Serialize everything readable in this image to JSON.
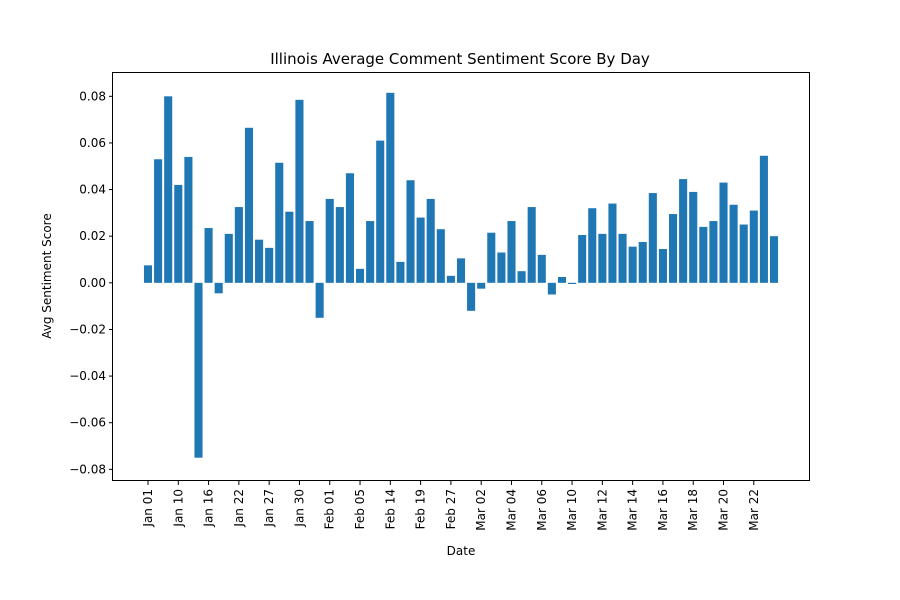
{
  "chart_data": {
    "type": "bar",
    "title": "Illinois Average Comment Sentiment Score By Day",
    "xlabel": "Date",
    "ylabel": "Avg Sentiment Score",
    "ylim": [
      -0.085,
      0.09
    ],
    "yticks": [
      -0.08,
      -0.06,
      -0.04,
      -0.02,
      0.0,
      0.02,
      0.04,
      0.06,
      0.08
    ],
    "ytick_labels": [
      "−0.08",
      "−0.06",
      "−0.04",
      "−0.02",
      "0.00",
      "0.02",
      "0.04",
      "0.06",
      "0.08"
    ],
    "xticks": [
      {
        "index": 0,
        "label": "Jan 01"
      },
      {
        "index": 3,
        "label": "Jan 10"
      },
      {
        "index": 6,
        "label": "Jan 16"
      },
      {
        "index": 9,
        "label": "Jan 22"
      },
      {
        "index": 12,
        "label": "Jan 27"
      },
      {
        "index": 15,
        "label": "Jan 30"
      },
      {
        "index": 18,
        "label": "Feb 01"
      },
      {
        "index": 21,
        "label": "Feb 05"
      },
      {
        "index": 24,
        "label": "Feb 14"
      },
      {
        "index": 27,
        "label": "Feb 19"
      },
      {
        "index": 30,
        "label": "Feb 27"
      },
      {
        "index": 33,
        "label": "Mar 02"
      },
      {
        "index": 36,
        "label": "Mar 04"
      },
      {
        "index": 39,
        "label": "Mar 06"
      },
      {
        "index": 42,
        "label": "Mar 10"
      },
      {
        "index": 45,
        "label": "Mar 12"
      },
      {
        "index": 48,
        "label": "Mar 14"
      },
      {
        "index": 51,
        "label": "Mar 16"
      },
      {
        "index": 54,
        "label": "Mar 18"
      },
      {
        "index": 57,
        "label": "Mar 20"
      },
      {
        "index": 60,
        "label": "Mar 22"
      }
    ],
    "values": [
      0.0075,
      0.053,
      0.08,
      0.042,
      0.054,
      -0.075,
      0.0235,
      -0.0045,
      0.021,
      0.0325,
      0.0665,
      0.0185,
      0.015,
      0.0515,
      0.0305,
      0.0785,
      0.0265,
      -0.015,
      0.036,
      0.0325,
      0.047,
      0.006,
      0.0265,
      0.061,
      0.0815,
      0.009,
      0.044,
      0.028,
      0.036,
      0.023,
      0.003,
      0.0105,
      -0.012,
      -0.0025,
      0.0215,
      0.013,
      0.0265,
      0.005,
      0.0325,
      0.012,
      -0.005,
      0.0025,
      -0.0005,
      0.0205,
      0.032,
      0.021,
      0.034,
      0.021,
      0.0155,
      0.0175,
      0.0385,
      0.0145,
      0.0295,
      0.0445,
      0.039,
      0.024,
      0.0265,
      0.043,
      0.0335,
      0.025,
      0.031,
      0.0545,
      0.02
    ],
    "bar_color": "#1f77b4",
    "grid": false
  }
}
